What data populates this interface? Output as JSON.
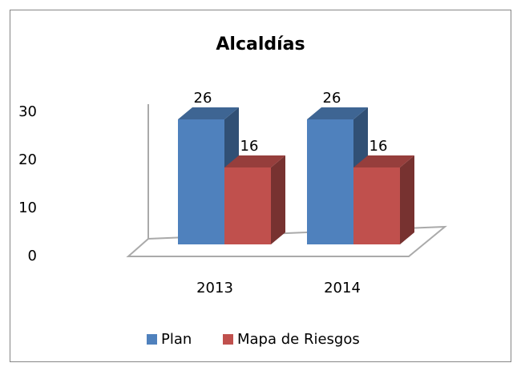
{
  "chart_data": {
    "type": "bar3d",
    "title": "Alcaldías",
    "categories": [
      "2013",
      "2014"
    ],
    "series": [
      {
        "name": "Plan",
        "color": "#4f81bd",
        "values": [
          26,
          26
        ]
      },
      {
        "name": "Mapa de Riesgos",
        "color": "#c0504d",
        "values": [
          16,
          16
        ]
      }
    ],
    "ylim": [
      0,
      30
    ],
    "yticks": [
      0,
      10,
      20,
      30
    ],
    "grid": false,
    "legend": "bottom"
  }
}
